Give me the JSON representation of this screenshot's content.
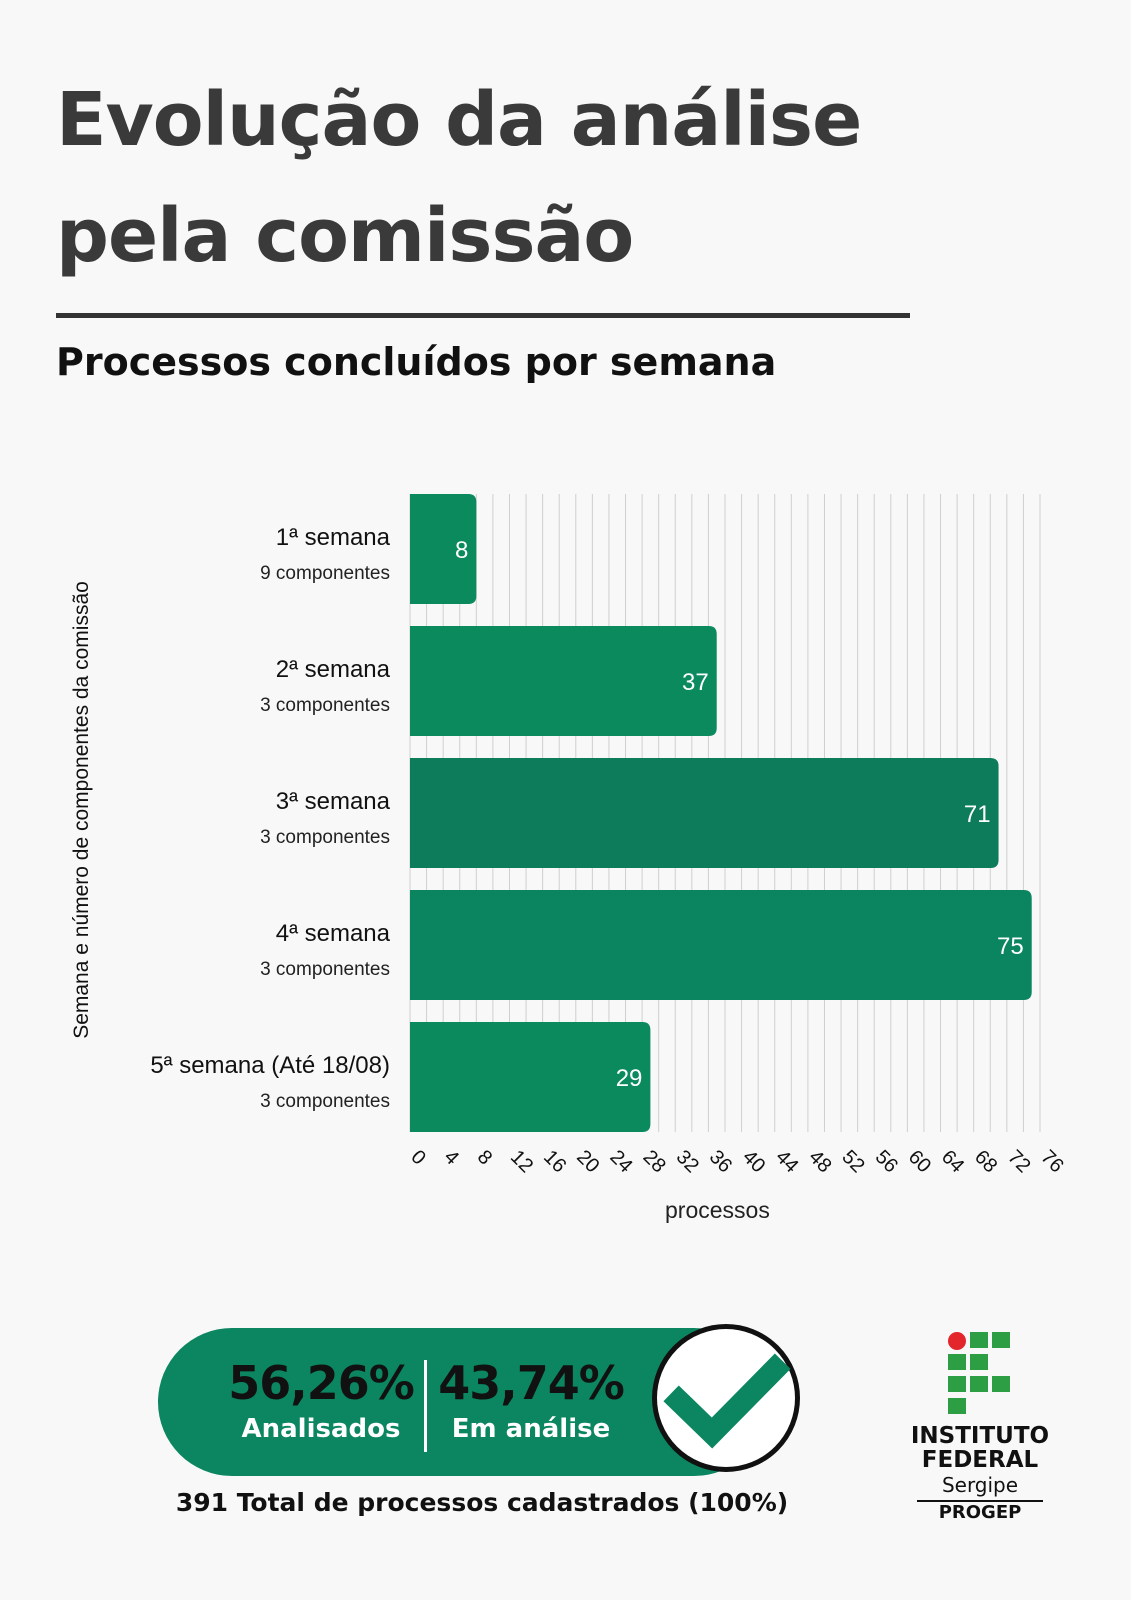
{
  "header": {
    "title_line1": "Evolução da análise",
    "title_line2": "pela comissão",
    "subtitle": "Processos concluídos por semana"
  },
  "chart_data": {
    "type": "bar",
    "orientation": "horizontal",
    "categories": [
      "1ª semana",
      "2ª semana",
      "3ª semana",
      "4ª semana",
      "5ª semana (Até 18/08)"
    ],
    "category_sublabels": [
      "9 componentes",
      "3 componentes",
      "3 componentes",
      "3 componentes",
      "3 componentes"
    ],
    "values": [
      8,
      37,
      71,
      75,
      29
    ],
    "data_labels": [
      "8",
      "37",
      "71",
      "75",
      "29"
    ],
    "xlabel": "processos",
    "ylabel": "Semana e número de componentes da comissão",
    "xlim": [
      0,
      76
    ],
    "xticks": [
      0,
      4,
      8,
      12,
      16,
      20,
      24,
      28,
      32,
      36,
      40,
      44,
      48,
      52,
      56,
      60,
      64,
      68,
      72,
      76
    ],
    "minor_grid_step": 2,
    "grid": true,
    "colors": [
      "#0b8a5e",
      "#0b8a5e",
      "#0c7c5a",
      "#0b8560",
      "#0b8a5e"
    ]
  },
  "summary": {
    "analyzed_pct": "56,26%",
    "analyzed_label": "Analisados",
    "pending_pct": "43,74%",
    "pending_label": "Em análise",
    "total_text": "391 Total de processos cadastrados (100%)",
    "accent_color": "#0b8660",
    "icon": "check-icon"
  },
  "logo": {
    "line1": "INSTITUTO",
    "line2": "FEDERAL",
    "line3": "Sergipe",
    "line4": "PROGEP",
    "dot_color": "#e3262c",
    "square_color": "#2e9e45"
  }
}
